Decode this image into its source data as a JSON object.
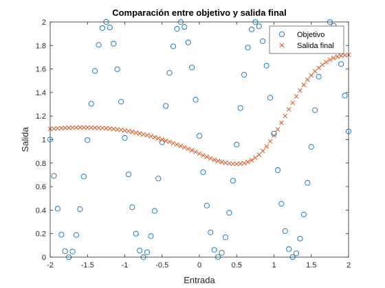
{
  "chart_data": {
    "type": "scatter",
    "title": "Comparación entre objetivo y salida final",
    "xlabel": "Entrada",
    "ylabel": "Salida",
    "xlim": [
      -2,
      2
    ],
    "ylim": [
      0,
      2
    ],
    "xticks": [
      "-2",
      "-1.5",
      "-1",
      "-0.5",
      "0",
      "0.5",
      "1",
      "1.5",
      "2"
    ],
    "yticks": [
      "0",
      "0.2",
      "0.4",
      "0.6",
      "0.8",
      "1",
      "1.2",
      "1.4",
      "1.6",
      "1.8",
      "2"
    ],
    "grid": false,
    "legend_position": "top-right",
    "x": [
      -2.0,
      -1.95,
      -1.9,
      -1.85,
      -1.8,
      -1.75,
      -1.7,
      -1.65,
      -1.6,
      -1.55,
      -1.5,
      -1.45,
      -1.4,
      -1.35,
      -1.3,
      -1.25,
      -1.2,
      -1.15,
      -1.1,
      -1.05,
      -1.0,
      -0.95,
      -0.9,
      -0.85,
      -0.8,
      -0.75,
      -0.7,
      -0.65,
      -0.6,
      -0.55,
      -0.5,
      -0.45,
      -0.4,
      -0.35,
      -0.3,
      -0.25,
      -0.2,
      -0.15,
      -0.1,
      -0.05,
      0.0,
      0.05,
      0.1,
      0.15,
      0.2,
      0.25,
      0.3,
      0.35,
      0.4,
      0.45,
      0.5,
      0.55,
      0.6,
      0.65,
      0.7,
      0.75,
      0.8,
      0.85,
      0.9,
      0.95,
      1.0,
      1.05,
      1.1,
      1.15,
      1.2,
      1.25,
      1.3,
      1.35,
      1.4,
      1.45,
      1.5,
      1.55,
      1.6,
      1.65,
      1.7,
      1.75,
      1.8,
      1.85,
      1.9,
      1.95,
      2.0
    ],
    "series": [
      {
        "name": "Objetivo",
        "marker": "circle",
        "color": "#0072BD",
        "values": [
          1.0,
          0.691,
          0.412,
          0.191,
          0.05,
          0.0,
          0.048,
          0.188,
          0.408,
          0.686,
          0.995,
          1.304,
          1.583,
          1.805,
          1.948,
          2.0,
          1.953,
          1.815,
          1.598,
          1.322,
          1.014,
          0.704,
          0.424,
          0.2,
          0.056,
          0.0,
          0.042,
          0.178,
          0.393,
          0.668,
          0.976,
          1.286,
          1.567,
          1.793,
          1.942,
          2.0,
          1.958,
          1.826,
          1.613,
          1.339,
          1.031,
          0.722,
          0.439,
          0.211,
          0.062,
          0.001,
          0.037,
          0.168,
          0.377,
          0.65,
          0.957,
          1.268,
          1.551,
          1.782,
          1.936,
          1.999,
          1.963,
          1.836,
          1.628,
          1.356,
          1.05,
          0.74,
          0.454,
          0.222,
          0.068,
          0.001,
          0.032,
          0.158,
          0.363,
          0.632,
          0.938,
          1.25,
          1.535,
          1.77,
          1.929,
          1.999,
          1.967,
          1.845,
          1.642,
          1.374,
          1.069
        ]
      },
      {
        "name": "Salida final",
        "marker": "x",
        "color": "#D95319",
        "values": [
          1.09,
          1.093,
          1.095,
          1.097,
          1.099,
          1.1,
          1.101,
          1.102,
          1.102,
          1.102,
          1.102,
          1.101,
          1.1,
          1.099,
          1.098,
          1.096,
          1.093,
          1.09,
          1.086,
          1.082,
          1.077,
          1.071,
          1.065,
          1.058,
          1.051,
          1.044,
          1.036,
          1.028,
          1.019,
          1.01,
          1.0,
          0.99,
          0.98,
          0.969,
          0.958,
          0.946,
          0.934,
          0.921,
          0.908,
          0.894,
          0.88,
          0.866,
          0.853,
          0.84,
          0.828,
          0.818,
          0.809,
          0.802,
          0.797,
          0.794,
          0.793,
          0.795,
          0.8,
          0.81,
          0.825,
          0.845,
          0.871,
          0.903,
          0.941,
          0.985,
          1.034,
          1.087,
          1.143,
          1.2,
          1.257,
          1.313,
          1.367,
          1.418,
          1.465,
          1.508,
          1.546,
          1.58,
          1.61,
          1.636,
          1.659,
          1.678,
          1.693,
          1.705,
          1.713,
          1.718,
          1.72
        ]
      }
    ]
  }
}
